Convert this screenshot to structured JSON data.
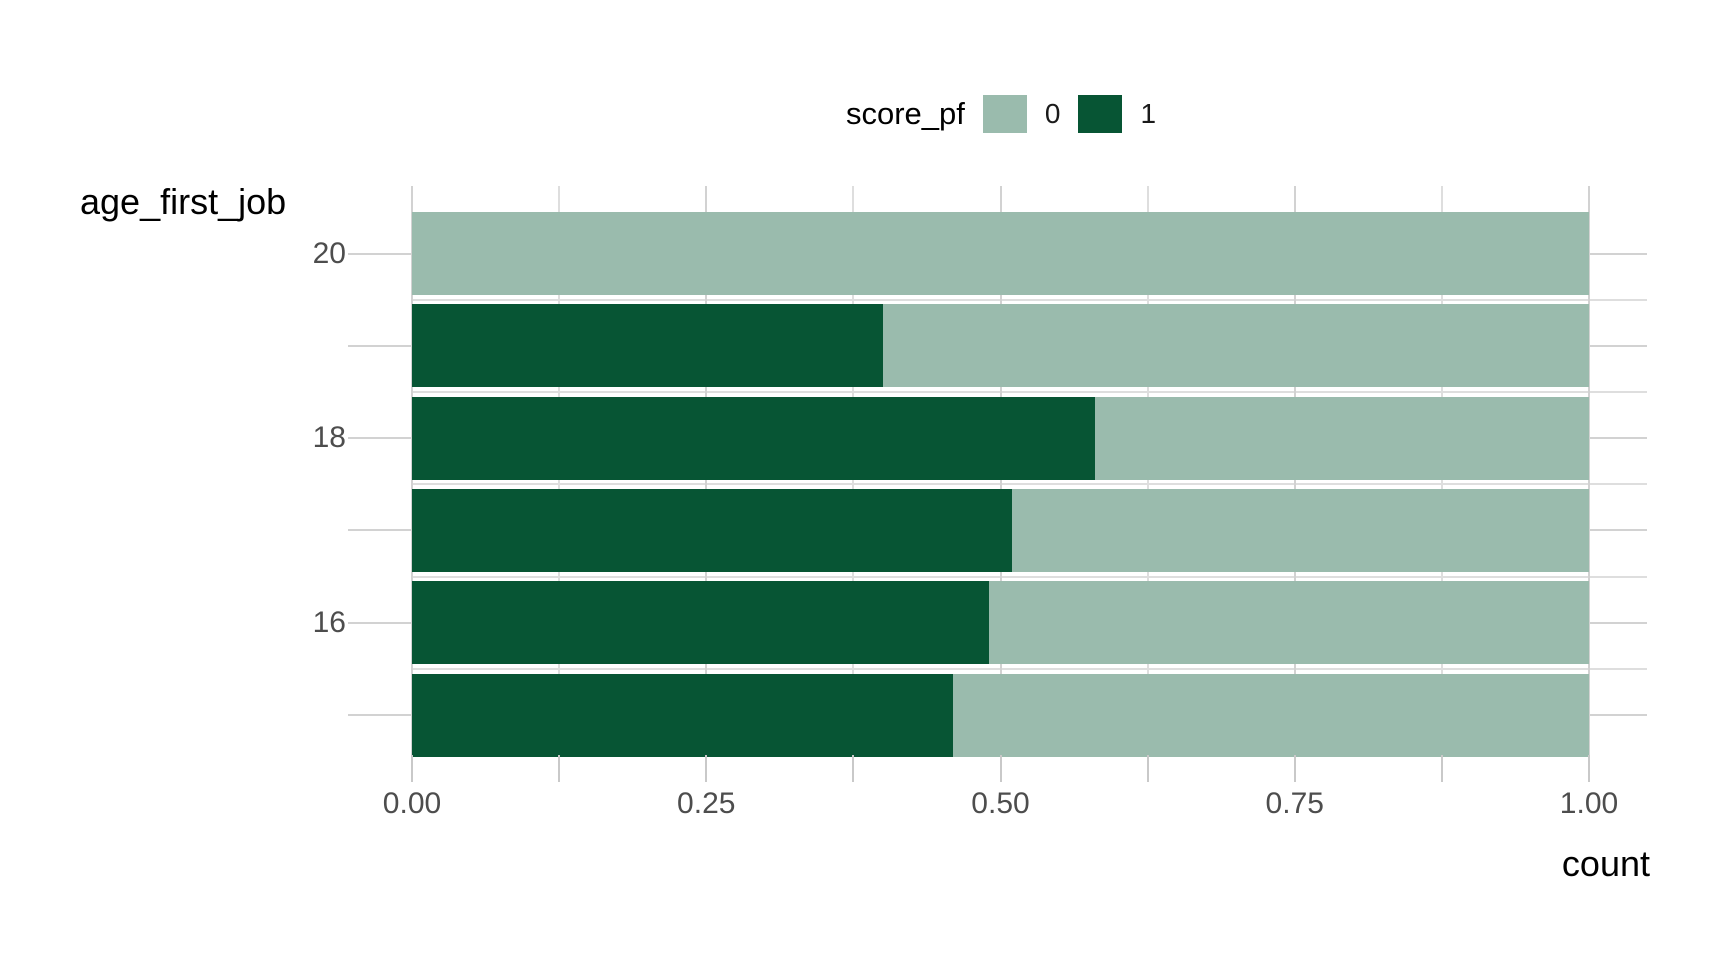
{
  "chart_data": {
    "type": "bar",
    "orientation": "horizontal",
    "stacked": true,
    "normalized": true,
    "title": "",
    "xlabel": "count",
    "ylabel": "age_first_job",
    "legend": {
      "title": "score_pf",
      "position": "top",
      "entries": [
        {
          "label": "0",
          "color": "#9ABBAD"
        },
        {
          "label": "1",
          "color": "#075534"
        }
      ]
    },
    "categories": [
      20,
      19,
      18,
      17,
      16,
      15
    ],
    "series": [
      {
        "name": "1",
        "color": "#075534",
        "values": [
          0.0,
          0.4,
          0.58,
          0.51,
          0.49,
          0.46
        ]
      },
      {
        "name": "0",
        "color": "#9ABBAD",
        "values": [
          1.0,
          0.6,
          0.42,
          0.49,
          0.51,
          0.54
        ]
      }
    ],
    "x_axis": {
      "limits": [
        0,
        1
      ],
      "ticks": [
        0,
        0.25,
        0.5,
        0.75,
        1
      ],
      "tick_labels": [
        "0.00",
        "0.25",
        "0.50",
        "0.75",
        "1.00"
      ],
      "minor_ticks": [
        0.125,
        0.375,
        0.625,
        0.875
      ]
    },
    "y_axis": {
      "ticks": [
        20,
        18,
        16
      ],
      "tick_labels": [
        "20",
        "18",
        "16"
      ]
    },
    "grid": true,
    "grid_color_major": "#d2d2d2",
    "grid_color_minor": "#dedede"
  }
}
